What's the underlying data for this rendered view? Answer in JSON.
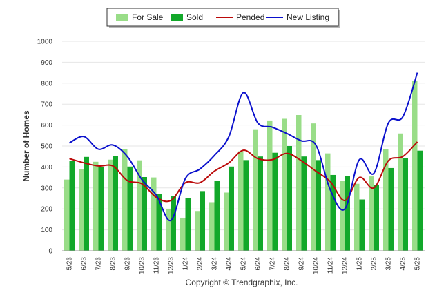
{
  "chart_data": {
    "type": "bar",
    "ylabel": "Number of Homes",
    "ylim": [
      0,
      1000
    ],
    "yticks": [
      0,
      100,
      200,
      300,
      400,
      500,
      600,
      700,
      800,
      900,
      1000
    ],
    "grid": true,
    "legend_position": "top-center",
    "credit": "Copyright © Trendgraphix, Inc.",
    "categories": [
      "5/23",
      "6/23",
      "7/23",
      "8/23",
      "9/23",
      "10/23",
      "11/23",
      "12/23",
      "1/24",
      "2/24",
      "3/24",
      "4/24",
      "5/24",
      "6/24",
      "7/24",
      "8/24",
      "9/24",
      "10/24",
      "11/24",
      "12/24",
      "1/25",
      "2/25",
      "3/25",
      "4/25",
      "5/25"
    ],
    "series": [
      {
        "name": "For Sale",
        "kind": "bar",
        "color": "#99dd88",
        "values": [
          340,
          390,
          425,
          435,
          485,
          432,
          350,
          200,
          158,
          190,
          232,
          278,
          475,
          580,
          622,
          630,
          648,
          608,
          465,
          335,
          320,
          355,
          485,
          560,
          810
        ]
      },
      {
        "name": "Sold",
        "kind": "bar",
        "color": "#12a82a",
        "values": [
          430,
          448,
          400,
          452,
          402,
          352,
          272,
          262,
          252,
          285,
          333,
          402,
          433,
          450,
          468,
          500,
          450,
          433,
          362,
          358,
          245,
          315,
          395,
          443,
          478
        ]
      },
      {
        "name": "Pended",
        "kind": "line",
        "color": "#bb0a0a",
        "values": [
          440,
          420,
          405,
          405,
          335,
          320,
          255,
          240,
          325,
          325,
          380,
          420,
          480,
          440,
          435,
          465,
          430,
          380,
          330,
          240,
          350,
          300,
          430,
          450,
          520
        ]
      },
      {
        "name": "New Listing",
        "kind": "line",
        "color": "#0a10cc",
        "values": [
          515,
          545,
          485,
          505,
          450,
          340,
          265,
          145,
          345,
          390,
          455,
          545,
          755,
          610,
          590,
          560,
          525,
          505,
          290,
          200,
          435,
          370,
          610,
          640,
          850
        ]
      }
    ]
  }
}
